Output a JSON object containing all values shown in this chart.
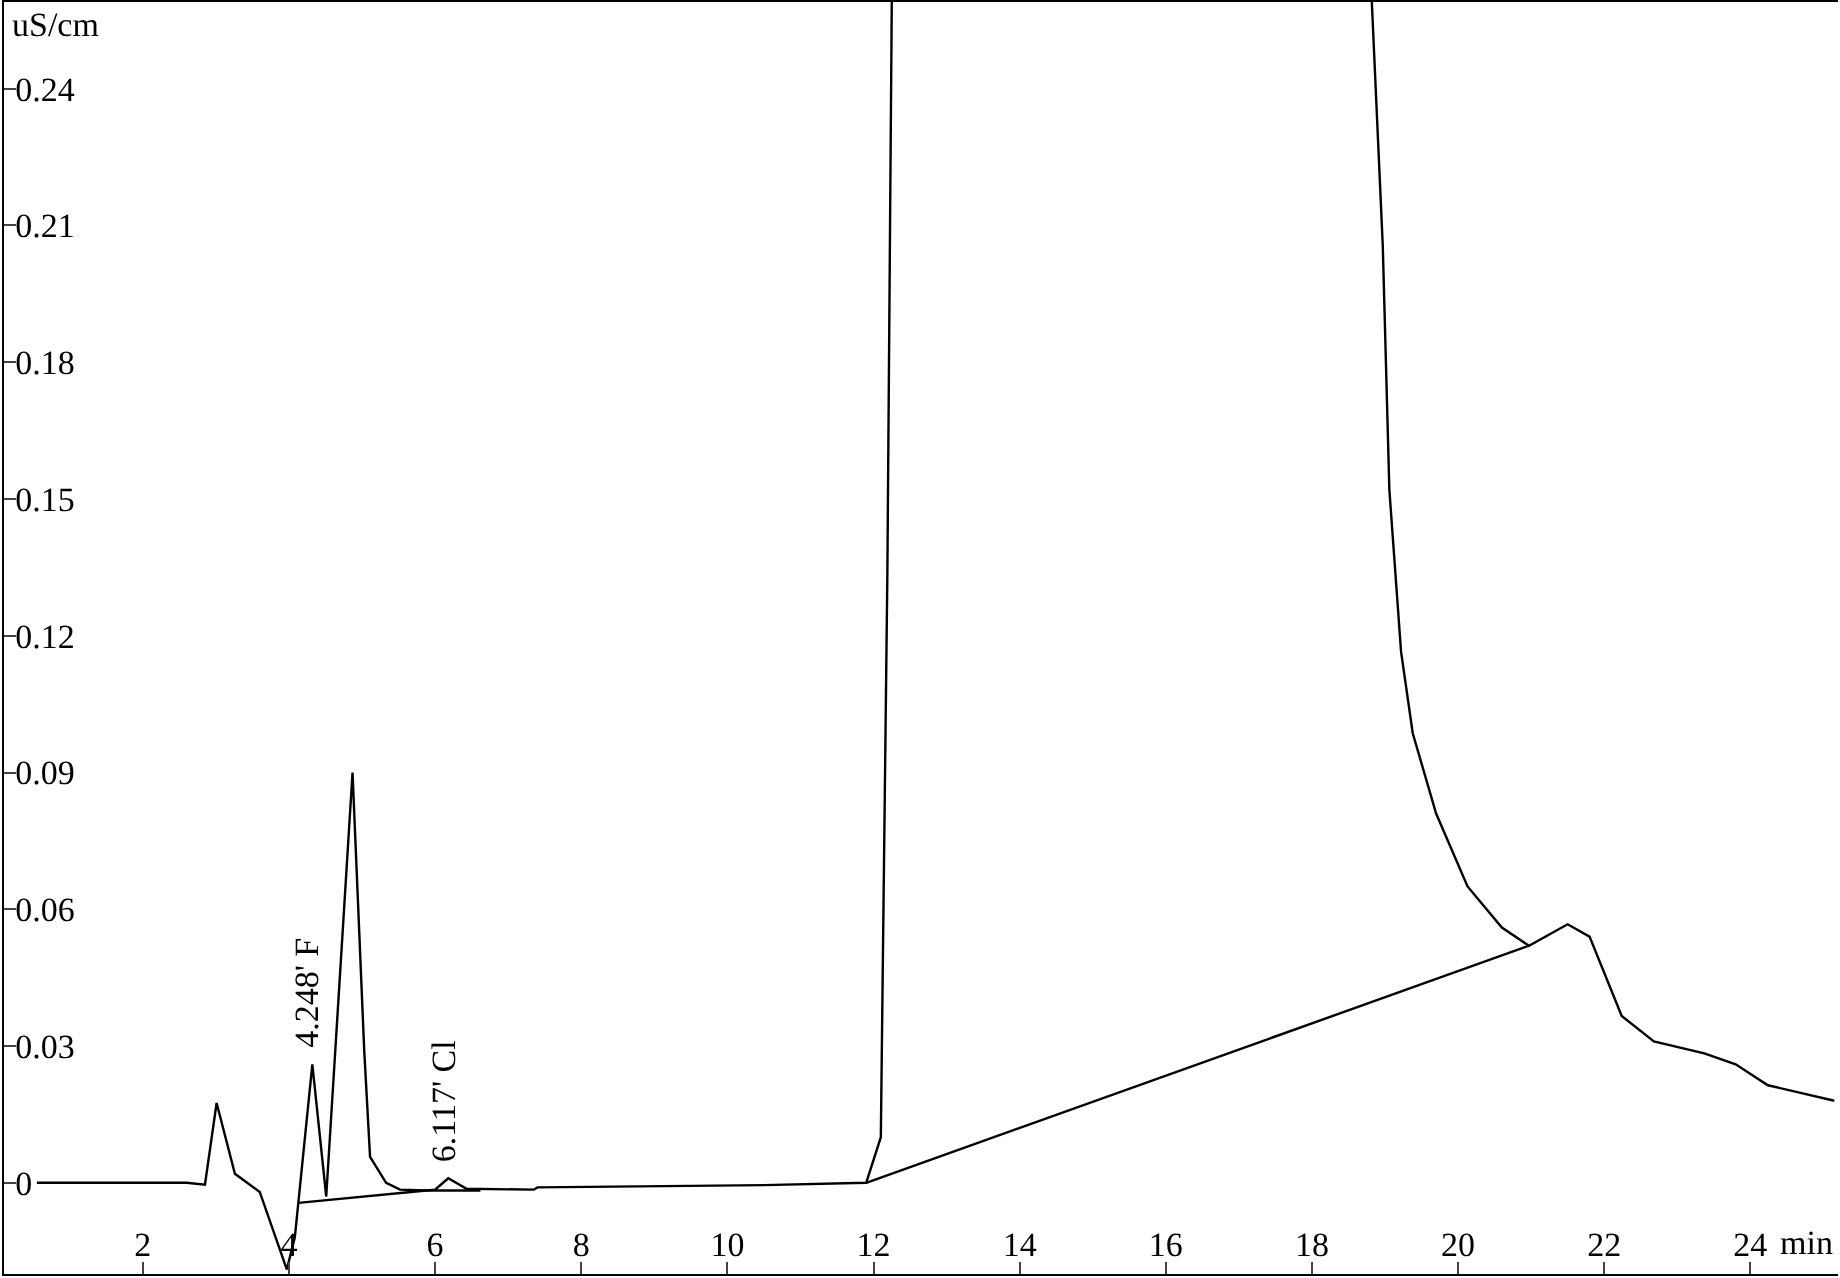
{
  "chart_data": {
    "type": "line",
    "xlabel": "min",
    "ylabel": "uS/cm",
    "xlim": [
      0.1,
      25.2
    ],
    "ylim": [
      -0.02,
      0.259
    ],
    "xticks": [
      2,
      4,
      6,
      8,
      10,
      12,
      14,
      16,
      18,
      20,
      22,
      24
    ],
    "yticks": [
      0,
      0.03,
      0.06,
      0.09,
      0.12,
      0.15,
      0.18,
      0.21,
      0.24
    ],
    "grid": false,
    "series": [
      {
        "color": "#000000",
        "x": [
          0.55,
          2.6,
          2.85,
          3.01,
          3.26,
          3.6,
          3.97,
          4.08,
          4.32,
          4.51,
          4.87,
          5.03,
          5.11,
          5.33,
          5.52,
          5.88,
          6.0,
          6.18,
          6.43,
          7.35,
          7.4,
          10.5,
          11.9,
          12.1,
          12.19,
          12.25
        ],
        "values": [
          0,
          0,
          -0.0004,
          0.0175,
          0.002,
          -0.002,
          -0.019,
          -0.012,
          0.026,
          -0.003,
          0.09,
          0.029,
          0.0057,
          0,
          -0.0015,
          -0.0017,
          -0.0015,
          0.001,
          -0.0013,
          -0.0015,
          -0.001,
          -0.0005,
          0,
          0.01,
          0.134,
          0.259
        ]
      },
      {
        "color": "#000000",
        "x": [
          18.82,
          18.97,
          19.06,
          19.22,
          19.38,
          19.7,
          20.13,
          20.6,
          20.97,
          21.5,
          21.8,
          22.24,
          22.68,
          23.37,
          23.8,
          24.24,
          25.15
        ],
        "values": [
          0.259,
          0.2055,
          0.152,
          0.1165,
          0.0986,
          0.081,
          0.065,
          0.056,
          0.052,
          0.0567,
          0.054,
          0.0366,
          0.031,
          0.0284,
          0.026,
          0.0214,
          0.018
        ]
      },
      {
        "color": "#000000",
        "x": [
          4.13,
          5.88,
          6.62
        ],
        "values": [
          -0.0044,
          -0.0017,
          -0.0017
        ]
      },
      {
        "color": "#000000",
        "x": [
          11.9,
          20.97
        ],
        "values": [
          0,
          0.052
        ]
      }
    ],
    "annotations": [
      {
        "text": "4.248' F",
        "x": 4.248,
        "y": 0.027
      },
      {
        "text": "6.117' Cl",
        "x": 6.117,
        "y": 0.002
      }
    ]
  }
}
